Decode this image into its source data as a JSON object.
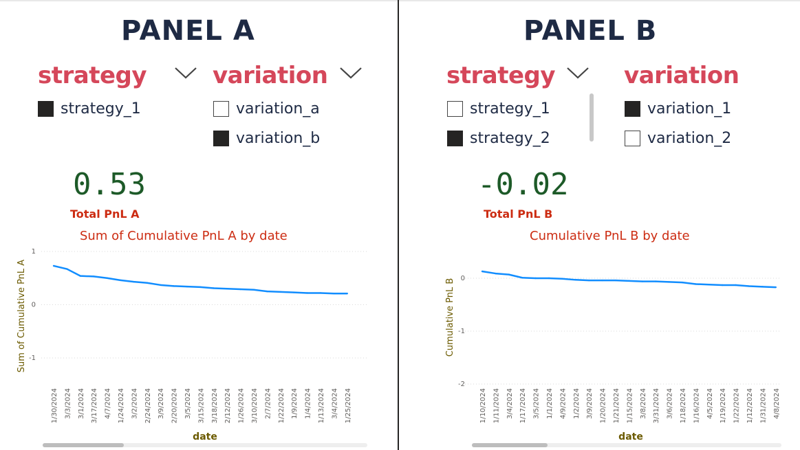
{
  "panel_a": {
    "title": "PANEL A",
    "strategy_slicer": {
      "title": "strategy",
      "options": [
        {
          "label": "strategy_1",
          "checked": true
        }
      ]
    },
    "variation_slicer": {
      "title": "variation",
      "options": [
        {
          "label": "variation_a",
          "checked": false
        },
        {
          "label": "variation_b",
          "checked": true
        }
      ]
    },
    "kpi": {
      "value": "0.53",
      "label": "Total PnL A"
    },
    "chart_title": "Sum of Cumulative PnL A by date"
  },
  "panel_b": {
    "title": "PANEL B",
    "strategy_slicer": {
      "title": "strategy",
      "options": [
        {
          "label": "strategy_1",
          "checked": false
        },
        {
          "label": "strategy_2",
          "checked": true
        }
      ]
    },
    "variation_slicer": {
      "title": "variation",
      "options": [
        {
          "label": "variation_1",
          "checked": true
        },
        {
          "label": "variation_2",
          "checked": false
        }
      ]
    },
    "kpi": {
      "value": "-0.02",
      "label": "Total PnL B"
    },
    "chart_title": "Cumulative PnL B by date"
  },
  "colors": {
    "line": "#118dff",
    "slicer_title": "#d5475a",
    "kpi_value": "#1d5a28",
    "kpi_label": "#cc2c12",
    "axis_title": "#6b5a00",
    "panel_title": "#1e2a44"
  },
  "chart_data": [
    {
      "type": "line",
      "title": "Sum of Cumulative PnL A by date",
      "xlabel": "date",
      "ylabel": "Sum of Cumulative PnL A",
      "ylim": [
        -1.2,
        1.0
      ],
      "yticks": [
        1,
        0,
        -1
      ],
      "grid": true,
      "categories": [
        "1/30/2024",
        "3/3/2024",
        "3/1/2024",
        "3/17/2024",
        "4/7/2024",
        "1/24/2024",
        "3/2/2024",
        "2/24/2024",
        "3/9/2024",
        "2/20/2024",
        "3/5/2024",
        "3/15/2024",
        "3/18/2024",
        "2/12/2024",
        "1/26/2024",
        "3/10/2024",
        "2/7/2024",
        "1/22/2024",
        "1/9/2024",
        "1/4/2024",
        "1/13/2024",
        "3/4/2024",
        "1/25/2024"
      ],
      "series": [
        {
          "values": [
            0.73,
            0.67,
            0.54,
            0.53,
            0.5,
            0.46,
            0.43,
            0.41,
            0.37,
            0.35,
            0.34,
            0.33,
            0.31,
            0.3,
            0.29,
            0.28,
            0.25,
            0.24,
            0.23,
            0.22,
            0.22,
            0.21,
            0.21
          ]
        }
      ]
    },
    {
      "type": "line",
      "title": "Cumulative PnL B by date",
      "xlabel": "date",
      "ylabel": "Cumulative PnL B",
      "ylim": [
        -2.0,
        0.4
      ],
      "yticks": [
        0,
        -1,
        -2
      ],
      "grid": true,
      "categories": [
        "1/10/2024",
        "1/11/2024",
        "3/4/2024",
        "1/17/2024",
        "3/5/2024",
        "1/1/2024",
        "4/9/2024",
        "1/2/2024",
        "3/9/2024",
        "1/20/2024",
        "1/21/2024",
        "1/15/2024",
        "3/8/2024",
        "3/31/2024",
        "3/6/2024",
        "1/18/2024",
        "1/16/2024",
        "4/5/2024",
        "1/19/2024",
        "1/22/2024",
        "1/12/2024",
        "1/31/2024",
        "4/8/2024"
      ],
      "series": [
        {
          "values": [
            0.13,
            0.09,
            0.07,
            0.01,
            0.0,
            0.0,
            -0.01,
            -0.03,
            -0.04,
            -0.04,
            -0.04,
            -0.05,
            -0.06,
            -0.06,
            -0.07,
            -0.08,
            -0.11,
            -0.12,
            -0.13,
            -0.13,
            -0.15,
            -0.16,
            -0.17
          ]
        }
      ]
    }
  ]
}
